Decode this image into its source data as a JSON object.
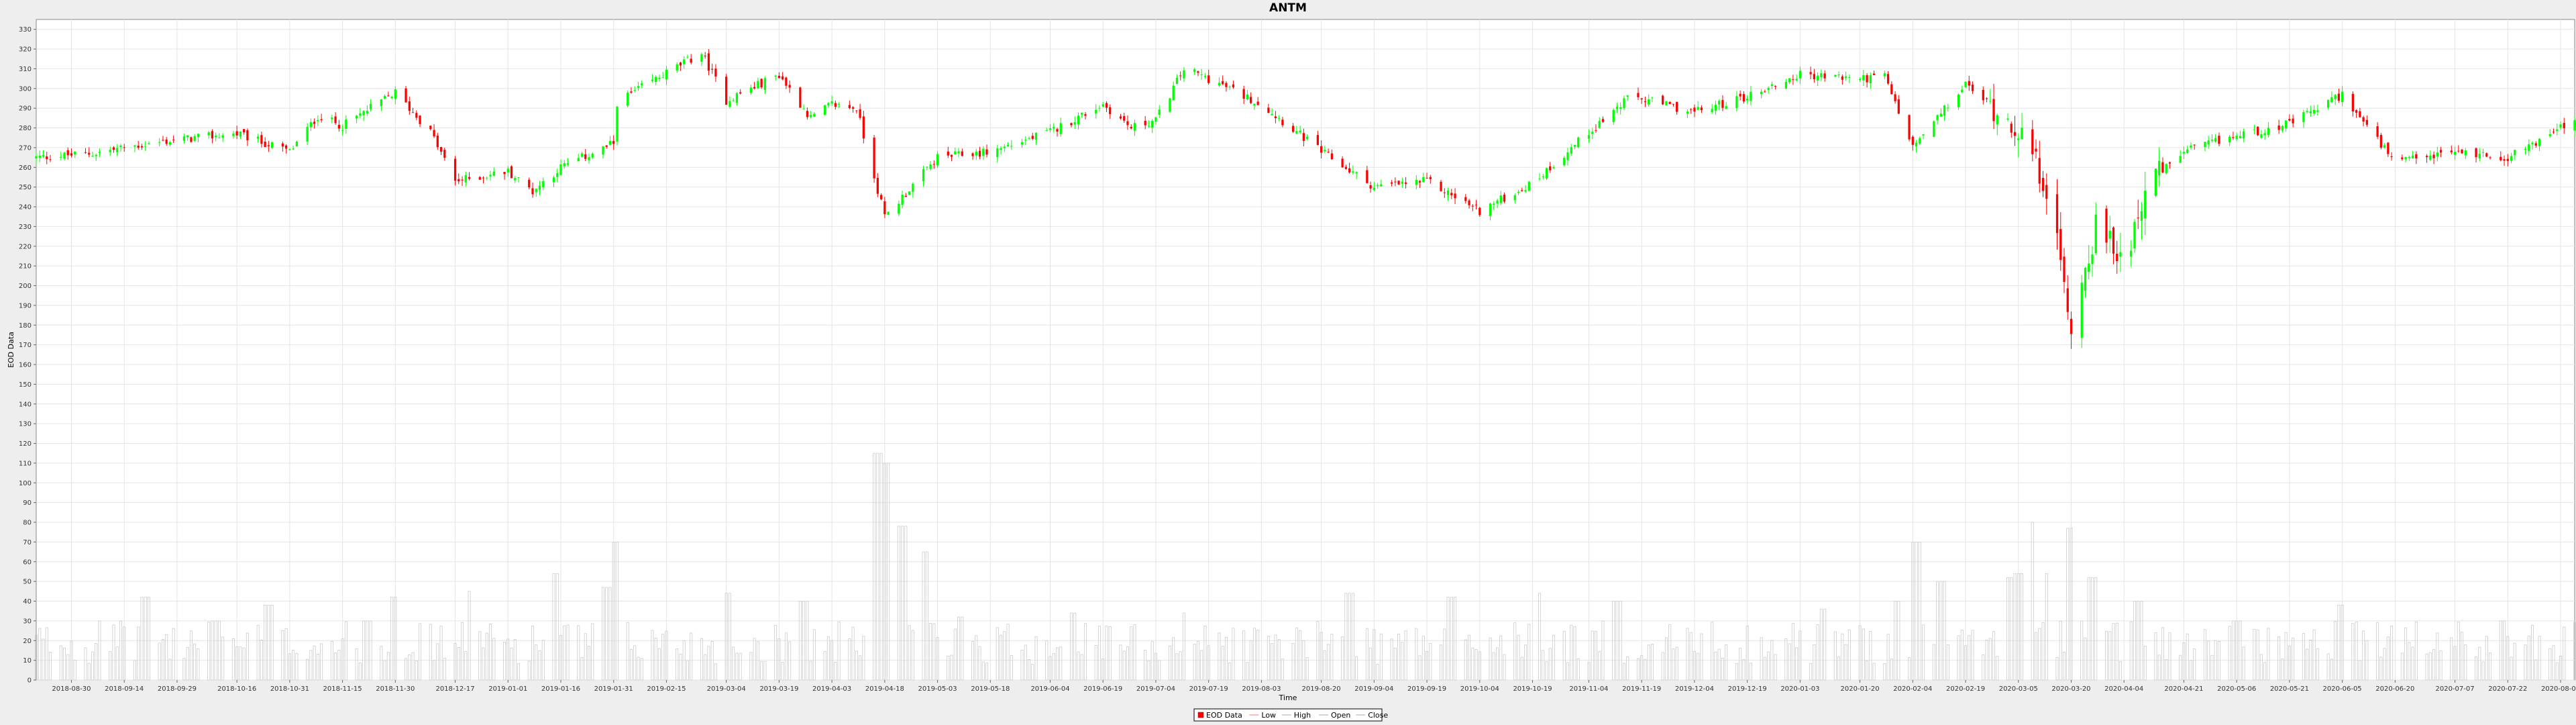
{
  "chart_data": {
    "type": "candlestick",
    "title": "ANTM",
    "xlabel": "Time",
    "ylabel": "EOD Data",
    "ylim": [
      0,
      335
    ],
    "y_ticks": [
      0,
      10,
      20,
      30,
      40,
      50,
      60,
      70,
      80,
      90,
      100,
      110,
      120,
      130,
      140,
      150,
      160,
      170,
      180,
      190,
      200,
      210,
      220,
      230,
      240,
      250,
      260,
      270,
      280,
      290,
      300,
      310,
      320,
      330
    ],
    "x_range": [
      "2018-08-20",
      "2020-08-10"
    ],
    "x_ticks": [
      "2018-08-30",
      "2018-09-14",
      "2018-09-29",
      "2018-10-16",
      "2018-10-31",
      "2018-11-15",
      "2018-11-30",
      "2018-12-17",
      "2019-01-01",
      "2019-01-16",
      "2019-01-31",
      "2019-02-15",
      "2019-03-04",
      "2019-03-19",
      "2019-04-03",
      "2019-04-18",
      "2019-05-03",
      "2019-05-18",
      "2019-06-04",
      "2019-06-19",
      "2019-07-04",
      "2019-07-19",
      "2019-08-03",
      "2019-08-20",
      "2019-09-04",
      "2019-09-19",
      "2019-10-04",
      "2019-10-19",
      "2019-11-04",
      "2019-11-19",
      "2019-12-04",
      "2019-12-19",
      "2020-01-03",
      "2020-01-20",
      "2020-02-04",
      "2020-02-19",
      "2020-03-05",
      "2020-03-20",
      "2020-04-04",
      "2020-04-21",
      "2020-05-06",
      "2020-05-21",
      "2020-06-05",
      "2020-06-20",
      "2020-07-07",
      "2020-07-22",
      "2020-08-06"
    ],
    "legend": [
      "EOD Data",
      "Low",
      "High",
      "Open",
      "Close"
    ],
    "legend_position": "bottom-center",
    "grid": true,
    "up_color": "#00ff00",
    "down_color": "#ff0000",
    "volume_color": "#cccccc",
    "close_anchors": [
      [
        "2018-08-20",
        265
      ],
      [
        "2018-09-05",
        267
      ],
      [
        "2018-09-14",
        270
      ],
      [
        "2018-09-29",
        274
      ],
      [
        "2018-10-16",
        277
      ],
      [
        "2018-10-31",
        268
      ],
      [
        "2018-11-08",
        286
      ],
      [
        "2018-11-15",
        281
      ],
      [
        "2018-11-30",
        298
      ],
      [
        "2018-12-10",
        278
      ],
      [
        "2018-12-17",
        253
      ],
      [
        "2019-01-01",
        258
      ],
      [
        "2019-01-08",
        248
      ],
      [
        "2019-01-16",
        260
      ],
      [
        "2019-01-31",
        272
      ],
      [
        "2019-02-01",
        293
      ],
      [
        "2019-02-15",
        308
      ],
      [
        "2019-02-25",
        318
      ],
      [
        "2019-03-04",
        294
      ],
      [
        "2019-03-19",
        307
      ],
      [
        "2019-03-28",
        285
      ],
      [
        "2019-04-03",
        292
      ],
      [
        "2019-04-10",
        290
      ],
      [
        "2019-04-18",
        235
      ],
      [
        "2019-05-03",
        265
      ],
      [
        "2019-05-18",
        268
      ],
      [
        "2019-06-04",
        278
      ],
      [
        "2019-06-19",
        292
      ],
      [
        "2019-06-27",
        280
      ],
      [
        "2019-07-04",
        284
      ],
      [
        "2019-07-12",
        310
      ],
      [
        "2019-07-19",
        305
      ],
      [
        "2019-08-03",
        292
      ],
      [
        "2019-08-20",
        268
      ],
      [
        "2019-09-04",
        250
      ],
      [
        "2019-09-19",
        253
      ],
      [
        "2019-10-04",
        238
      ],
      [
        "2019-10-19",
        252
      ],
      [
        "2019-11-04",
        278
      ],
      [
        "2019-11-16",
        296
      ],
      [
        "2019-12-04",
        288
      ],
      [
        "2019-12-19",
        296
      ],
      [
        "2020-01-03",
        307
      ],
      [
        "2020-01-20",
        305
      ],
      [
        "2020-01-27",
        306
      ],
      [
        "2020-02-04",
        270
      ],
      [
        "2020-02-19",
        302
      ],
      [
        "2020-03-05",
        280
      ],
      [
        "2020-03-13",
        250
      ],
      [
        "2020-03-20",
        180
      ],
      [
        "2020-03-27",
        230
      ],
      [
        "2020-04-04",
        212
      ],
      [
        "2020-04-10",
        250
      ],
      [
        "2020-04-21",
        268
      ],
      [
        "2020-05-06",
        276
      ],
      [
        "2020-05-21",
        282
      ],
      [
        "2020-06-05",
        297
      ],
      [
        "2020-06-20",
        262
      ],
      [
        "2020-07-07",
        268
      ],
      [
        "2020-07-22",
        265
      ],
      [
        "2020-08-10",
        284
      ]
    ],
    "volume_spikes": [
      [
        "2018-09-08",
        30
      ],
      [
        "2018-09-20",
        42
      ],
      [
        "2018-10-10",
        30
      ],
      [
        "2018-10-25",
        38
      ],
      [
        "2018-11-22",
        30
      ],
      [
        "2018-11-30",
        42
      ],
      [
        "2018-12-22",
        45
      ],
      [
        "2019-01-14",
        54
      ],
      [
        "2019-01-29",
        47
      ],
      [
        "2019-02-01",
        70
      ],
      [
        "2019-03-04",
        44
      ],
      [
        "2019-03-26",
        40
      ],
      [
        "2019-04-16",
        115
      ],
      [
        "2019-04-19",
        110
      ],
      [
        "2019-04-23",
        78
      ],
      [
        "2019-04-29",
        65
      ],
      [
        "2019-05-10",
        32
      ],
      [
        "2019-06-10",
        34
      ],
      [
        "2019-07-13",
        34
      ],
      [
        "2019-08-28",
        44
      ],
      [
        "2019-09-26",
        42
      ],
      [
        "2019-10-20",
        44
      ],
      [
        "2019-11-12",
        40
      ],
      [
        "2020-01-10",
        36
      ],
      [
        "2020-01-31",
        40
      ],
      [
        "2020-02-05",
        70
      ],
      [
        "2020-02-12",
        50
      ],
      [
        "2020-03-02",
        52
      ],
      [
        "2020-03-05",
        54
      ],
      [
        "2020-03-08",
        80
      ],
      [
        "2020-03-14",
        54
      ],
      [
        "2020-03-20",
        77
      ],
      [
        "2020-03-26",
        52
      ],
      [
        "2020-04-08",
        40
      ],
      [
        "2020-05-06",
        30
      ],
      [
        "2020-06-05",
        38
      ],
      [
        "2020-07-20",
        30
      ]
    ]
  }
}
